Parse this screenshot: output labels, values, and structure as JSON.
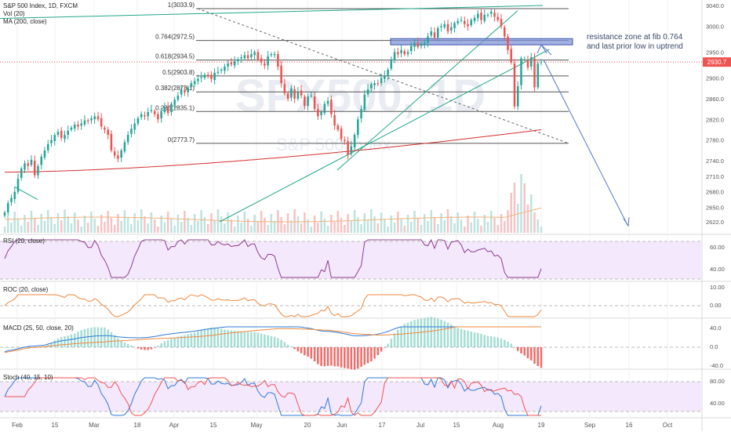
{
  "header": {
    "title": "S&P 500 Index, 1D, FXCM",
    "vol": "Vol (20)",
    "ma": "MA (200, close)"
  },
  "annotation": {
    "line1": "resistance zone at fib 0.764",
    "line2": "and last prior low in uptrend"
  },
  "watermark": {
    "main": "SPX500, 1D",
    "sub": "S&P 500 Index"
  },
  "colors": {
    "up": "#26a69a",
    "down": "#ef5350",
    "ma": "#d32f2f",
    "fib": "#555555",
    "trend": "#22a88a",
    "zone": "#7b8fd6",
    "arrow": "#5677c7",
    "price_tag": "#ef5350",
    "rsi_line": "#8e3d8e",
    "roc_line": "#f0883e",
    "macd_line": "#2e7bd6",
    "signal_line": "#f0883e",
    "stoch_k": "#2e7bd6",
    "stoch_d": "#ef5350",
    "band_fill": "#f4e8fd"
  },
  "chart_data": [
    {
      "type": "candlestick",
      "title": "S&P 500 Index, 1D, FXCM",
      "ylim": [
        2600,
        3060
      ],
      "price_axis_ticks": [
        "3040.0",
        "3000.0",
        "2950.0",
        "2930.7",
        "2900.0",
        "2860.0",
        "2820.0",
        "2780.0",
        "2740.0",
        "2710.0",
        "2680.0",
        "2650.0",
        "2622.0"
      ],
      "last_price": "2930.7",
      "x_axis_ticks": [
        "Feb",
        "15",
        "Mar",
        "18",
        "Apr",
        "15",
        "May",
        "20",
        "Jun",
        "17",
        "Jul",
        "15",
        "Aug",
        "19",
        "Sep",
        "16",
        "Oct"
      ],
      "fib_levels": [
        {
          "label": "1(3033.9)",
          "value": 3033.9
        },
        {
          "label": "0.764(2972.5)",
          "value": 2972.5
        },
        {
          "label": "0.618(2934.5)",
          "value": 2934.5
        },
        {
          "label": "0.5(2903.8)",
          "value": 2903.8
        },
        {
          "label": "0.382(2873.1)",
          "value": 2873.1
        },
        {
          "label": "0.236(2835.1)",
          "value": 2835.1
        },
        {
          "label": "0(2773.7)",
          "value": 2773.7
        }
      ],
      "resistance_zone": [
        2964,
        2976
      ],
      "closes": [
        2640,
        2658,
        2668,
        2680,
        2705,
        2725,
        2735,
        2730,
        2742,
        2712,
        2730,
        2748,
        2760,
        2772,
        2780,
        2790,
        2796,
        2784,
        2790,
        2798,
        2804,
        2810,
        2806,
        2812,
        2818,
        2816,
        2822,
        2826,
        2820,
        2806,
        2800,
        2790,
        2760,
        2750,
        2744,
        2760,
        2776,
        2790,
        2802,
        2812,
        2822,
        2830,
        2826,
        2834,
        2838,
        2830,
        2820,
        2836,
        2844,
        2832,
        2850,
        2858,
        2866,
        2878,
        2872,
        2882,
        2890,
        2894,
        2898,
        2902,
        2906,
        2904,
        2898,
        2910,
        2912,
        2916,
        2922,
        2928,
        2926,
        2932,
        2936,
        2940,
        2944,
        2938,
        2946,
        2950,
        2936,
        2930,
        2924,
        2942,
        2946,
        2946,
        2922,
        2890,
        2870,
        2860,
        2880,
        2860,
        2874,
        2866,
        2846,
        2864,
        2866,
        2840,
        2826,
        2834,
        2850,
        2856,
        2830,
        2808,
        2800,
        2782,
        2778,
        2751,
        2768,
        2790,
        2820,
        2840,
        2868,
        2878,
        2888,
        2890,
        2888,
        2900,
        2904,
        2916,
        2936,
        2950,
        2946,
        2954,
        2946,
        2950,
        2962,
        2968,
        2960,
        2966,
        2968,
        2980,
        2990,
        2978,
        2996,
        3000,
        3004,
        2990,
        2998,
        3006,
        3010,
        3012,
        3004,
        3000,
        3012,
        3016,
        3024,
        3012,
        3022,
        3022,
        3028,
        3018,
        3012,
        3000,
        2980,
        2954,
        2930,
        2845,
        2884,
        2938,
        2936,
        2920,
        2940,
        2882,
        2928,
        2930.7
      ],
      "ma200": {
        "start": 2718,
        "end": 2800
      },
      "panels": [
        {
          "name": "RSI (20, close)",
          "ticks": [
            "60.00",
            "40.00"
          ]
        },
        {
          "name": "ROC (20, close)",
          "ticks": [
            "10.00",
            "0.00"
          ]
        },
        {
          "name": "MACD (25, 50, close, 20)",
          "ticks": [
            "40.0",
            "0.0",
            "-40.0"
          ]
        },
        {
          "name": "Stoch (40, 15, 10)",
          "ticks": [
            "80.00",
            "40.00"
          ]
        }
      ]
    }
  ]
}
